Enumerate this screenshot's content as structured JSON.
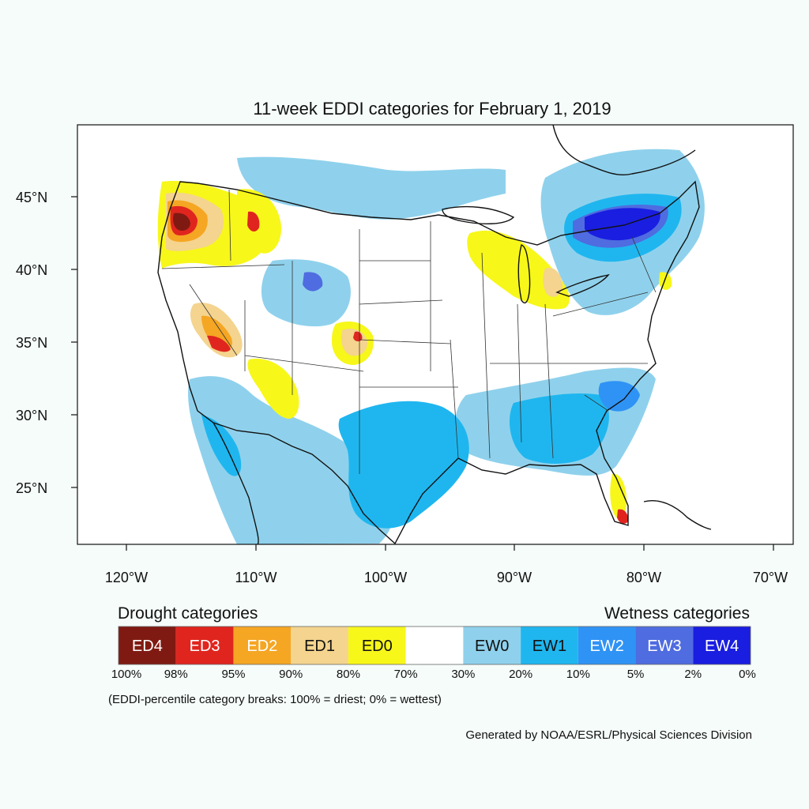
{
  "title": "11-week EDDI categories for February 1, 2019",
  "axes": {
    "lat_ticks": [
      "45°N",
      "40°N",
      "35°N",
      "30°N",
      "25°N"
    ],
    "lon_ticks": [
      "120°W",
      "110°W",
      "100°W",
      "90°W",
      "80°W",
      "70°W"
    ]
  },
  "legend": {
    "drought_header": "Drought categories",
    "wetness_header": "Wetness categories",
    "categories": [
      {
        "label": "ED4",
        "color": "#7f1a12",
        "text_color": "#ffffff"
      },
      {
        "label": "ED3",
        "color": "#e0251f",
        "text_color": "#ffffff"
      },
      {
        "label": "ED2",
        "color": "#f5a623",
        "text_color": "#ffffff"
      },
      {
        "label": "ED1",
        "color": "#f4d48e",
        "text_color": "#111111"
      },
      {
        "label": "ED0",
        "color": "#f7f71a",
        "text_color": "#111111"
      },
      {
        "label": "",
        "color": "#ffffff",
        "text_color": "#111111"
      },
      {
        "label": "EW0",
        "color": "#8fd1ec",
        "text_color": "#111111"
      },
      {
        "label": "EW1",
        "color": "#1fb6ef",
        "text_color": "#111111"
      },
      {
        "label": "EW2",
        "color": "#2f93f5",
        "text_color": "#ffffff"
      },
      {
        "label": "EW3",
        "color": "#4f6ce0",
        "text_color": "#ffffff"
      },
      {
        "label": "EW4",
        "color": "#1a1ee0",
        "text_color": "#ffffff"
      }
    ],
    "breaks": [
      "100%",
      "98%",
      "95%",
      "90%",
      "80%",
      "70%",
      "30%",
      "20%",
      "10%",
      "5%",
      "2%",
      "0%"
    ]
  },
  "note": "(EDDI-percentile category breaks: 100% = driest; 0% = wettest)",
  "credit": "Generated by NOAA/ESRL/Physical Sciences Division"
}
